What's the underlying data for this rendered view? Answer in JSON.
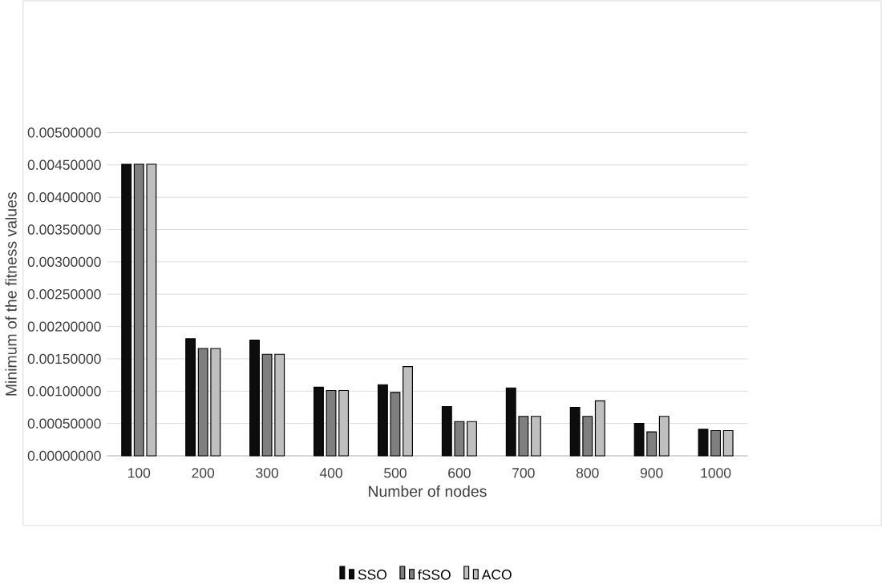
{
  "chart_data": {
    "type": "bar",
    "xlabel": "Number of nodes",
    "ylabel": "Minimum of the fitness values",
    "categories": [
      "100",
      "200",
      "300",
      "400",
      "500",
      "600",
      "700",
      "800",
      "900",
      "1000"
    ],
    "series": [
      {
        "name": "SSO",
        "color": "#0d0d0d",
        "values": [
          0.00451,
          0.00181,
          0.00179,
          0.00106,
          0.0011,
          0.00076,
          0.00105,
          0.00075,
          0.0005,
          0.00041
        ]
      },
      {
        "name": "fSSO",
        "color": "#7f7f7f",
        "values": [
          0.00451,
          0.00166,
          0.00157,
          0.00101,
          0.00098,
          0.00053,
          0.00061,
          0.00061,
          0.00037,
          0.00039
        ]
      },
      {
        "name": "ACO",
        "color": "#bfbfbf",
        "values": [
          0.00451,
          0.00166,
          0.00157,
          0.00101,
          0.00138,
          0.00053,
          0.00061,
          0.00085,
          0.00061,
          0.00039
        ]
      }
    ],
    "ylim": [
      0,
      0.005
    ],
    "yticks": [
      {
        "value": 0,
        "label": "0.00000000"
      },
      {
        "value": 0.0005,
        "label": "0.00050000"
      },
      {
        "value": 0.001,
        "label": "0.00100000"
      },
      {
        "value": 0.0015,
        "label": "0.00150000"
      },
      {
        "value": 0.002,
        "label": "0.00200000"
      },
      {
        "value": 0.0025,
        "label": "0.00250000"
      },
      {
        "value": 0.003,
        "label": "0.00300000"
      },
      {
        "value": 0.0035,
        "label": "0.00350000"
      },
      {
        "value": 0.004,
        "label": "0.00400000"
      },
      {
        "value": 0.0045,
        "label": "0.00450000"
      },
      {
        "value": 0.005,
        "label": "0.00500000"
      }
    ],
    "grid": "y",
    "legend": "bottom"
  }
}
